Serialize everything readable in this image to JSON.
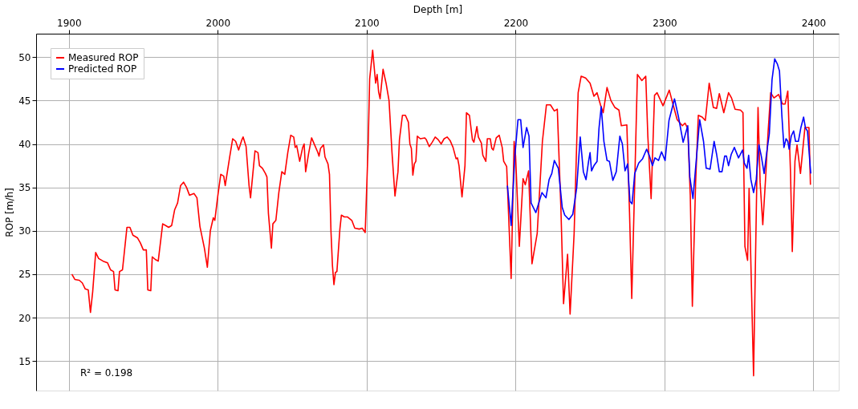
{
  "chart_data": {
    "type": "line",
    "xlabel": "Depth [m]",
    "ylabel": "ROP [m/h]",
    "xlim": [
      1878,
      2417
    ],
    "ylim": [
      11.6,
      52.7
    ],
    "xticks": [
      1900,
      2000,
      2100,
      2200,
      2300,
      2400
    ],
    "yticks": [
      15,
      20,
      25,
      30,
      35,
      40,
      45,
      50
    ],
    "grid": true,
    "legend": "top left",
    "line_style": "solid",
    "marker": "none",
    "annotations": [
      "R² = 0.198"
    ],
    "series": [
      {
        "name": "Measured ROP",
        "color": "#ff0000",
        "x": [
          1902,
          1904,
          1907,
          1909,
          1911,
          1913,
          1914.5,
          1916,
          1918,
          1920,
          1923,
          1926,
          1928,
          1930,
          1931,
          1933,
          1934,
          1936,
          1939,
          1941,
          1943,
          1946,
          1948,
          1950,
          1952,
          1953,
          1955,
          1956,
          1958,
          1960,
          1963,
          1965,
          1967,
          1969,
          1971,
          1973,
          1975,
          1977,
          1979,
          1981,
          1984,
          1986,
          1988,
          1991,
          1993,
          1995,
          1997,
          1998,
          2000,
          2002,
          2004,
          2005,
          2008,
          2010,
          2012,
          2014,
          2016,
          2017,
          2019,
          2021,
          2022,
          2025,
          2027,
          2028,
          2030,
          2032,
          2033,
          2034,
          2036,
          2037,
          2039,
          2041,
          2043,
          2045,
          2047,
          2049,
          2051,
          2052,
          2053,
          2055,
          2057,
          2058,
          2059,
          2061,
          2063,
          2065,
          2067,
          2068,
          2069,
          2071,
          2072,
          2074,
          2075,
          2076,
          2077,
          2078,
          2079,
          2080,
          2082,
          2083,
          2085,
          2087,
          2090,
          2092,
          2095,
          2097,
          2099,
          2101,
          2102,
          2104,
          2106,
          2107,
          2108,
          2109,
          2111,
          2113,
          2115,
          2117,
          2119,
          2121,
          2122,
          2124,
          2126,
          2128,
          2129,
          2130,
          2131,
          2132,
          2133,
          2134,
          2136,
          2139,
          2140,
          2142,
          2144,
          2146,
          2148,
          2150,
          2152,
          2154,
          2156,
          2158,
          2160,
          2161,
          2162,
          2164,
          2166,
          2167,
          2169,
          2171,
          2172,
          2174,
          2175,
          2177,
          2178,
          2180,
          2181,
          2183,
          2184,
          2185,
          2187,
          2189,
          2191,
          2192,
          2194,
          2197,
          2199,
          2200,
          2202.5,
          2205,
          2206.5,
          2208.7,
          2211,
          2214.5,
          2218,
          2220.7,
          2223.4,
          2226,
          2228,
          2230.4,
          2232.2,
          2234.9,
          2236.6,
          2239.3,
          2242,
          2244,
          2247,
          2250,
          2252.6,
          2254.7,
          2257,
          2258.8,
          2261.4,
          2264,
          2266.7,
          2269.4,
          2271,
          2274.7,
          2276.5,
          2278,
          2280,
          2281.8,
          2284.8,
          2287.4,
          2288.8,
          2291,
          2293.3,
          2295,
          2299,
          2303.2,
          2305.8,
          2308.5,
          2312,
          2313.8,
          2315.6,
          2317.3,
          2318.7,
          2320.9,
          2322.7,
          2325.3,
          2327.4,
          2330,
          2332.8,
          2335,
          2336.8,
          2339.8,
          2343,
          2345,
          2347.4,
          2351,
          2352.7,
          2354,
          2355.8,
          2356.8,
          2359.8,
          2362.8,
          2364.2,
          2366,
          2367.8,
          2369.6,
          2371.3,
          2373.5,
          2376.6,
          2379.3,
          2381,
          2382.8,
          2384.6,
          2385.8,
          2387.6,
          2389,
          2391.3,
          2394.3,
          2397,
          2398
        ],
        "values": [
          25.0,
          24.4,
          24.3,
          24.0,
          23.3,
          23.2,
          20.6,
          23.0,
          27.5,
          26.8,
          26.5,
          26.3,
          25.5,
          25.3,
          23.2,
          23.1,
          25.3,
          25.5,
          30.4,
          30.4,
          29.5,
          29.2,
          28.6,
          27.8,
          27.8,
          23.2,
          23.1,
          27.0,
          26.7,
          26.5,
          30.8,
          30.6,
          30.4,
          30.6,
          32.4,
          33.2,
          35.2,
          35.6,
          35.0,
          34.1,
          34.3,
          33.8,
          30.5,
          28.0,
          25.8,
          30.0,
          31.5,
          31.2,
          34.0,
          36.5,
          36.3,
          35.2,
          38.5,
          40.6,
          40.3,
          39.3,
          40.4,
          40.8,
          39.7,
          35.2,
          33.8,
          39.2,
          39.0,
          37.5,
          37.2,
          36.6,
          36.2,
          32.0,
          28.0,
          30.8,
          31.2,
          34.4,
          36.8,
          36.5,
          39.0,
          41.0,
          40.8,
          39.6,
          39.8,
          38.0,
          39.6,
          40.0,
          36.8,
          38.9,
          40.7,
          39.9,
          39.1,
          38.6,
          39.5,
          39.9,
          38.5,
          37.7,
          36.5,
          30.0,
          26.0,
          23.8,
          25.2,
          25.3,
          30.2,
          31.8,
          31.6,
          31.6,
          31.2,
          30.3,
          30.2,
          30.3,
          29.8,
          40.0,
          47.5,
          50.8,
          47.0,
          48.0,
          46.0,
          45.2,
          48.6,
          47.0,
          45.0,
          39.0,
          34.0,
          36.8,
          40.5,
          43.3,
          43.3,
          42.5,
          40.0,
          39.5,
          36.4,
          37.7,
          38.0,
          40.9,
          40.6,
          40.7,
          40.5,
          39.7,
          40.2,
          40.8,
          40.5,
          40.0,
          40.6,
          40.8,
          40.4,
          39.6,
          38.3,
          38.4,
          37.5,
          33.9,
          37.5,
          43.6,
          43.3,
          40.5,
          40.2,
          42.0,
          40.8,
          40.1,
          38.7,
          38.0,
          40.6,
          40.6,
          39.5,
          39.3,
          40.7,
          41.0,
          39.6,
          38.0,
          37.4,
          24.5,
          40.3,
          38.6,
          28.2,
          36.0,
          35.3,
          36.9,
          26.2,
          29.7,
          40.3,
          44.5,
          44.5,
          43.8,
          44.0,
          32.7,
          21.6,
          27.3,
          20.4,
          29.7,
          45.9,
          47.8,
          47.6,
          47.0,
          45.5,
          45.9,
          44.5,
          43.6,
          46.5,
          45.0,
          44.2,
          43.9,
          42.1,
          42.2,
          32.1,
          22.2,
          35.6,
          48.0,
          47.3,
          47.8,
          40.9,
          33.7,
          45.6,
          45.9,
          44.4,
          46.2,
          44.5,
          42.8,
          42.1,
          42.4,
          41.8,
          34.1,
          21.3,
          35.6,
          43.3,
          43.1,
          42.7,
          47.0,
          44.2,
          44.1,
          45.8,
          43.6,
          45.9,
          45.3,
          44.0,
          43.9,
          43.6,
          28.2,
          26.6,
          34.9,
          13.3,
          44.2,
          35.6,
          30.7,
          35.8,
          41.5,
          45.9,
          45.3,
          45.7,
          44.6,
          44.6,
          46.1,
          36.8,
          27.6,
          38.0,
          39.9,
          36.6,
          41.9,
          41.9,
          35.3
        ]
      },
      {
        "name": "Predicted ROP",
        "color": "#0000ff",
        "x": [
          2194.5,
          2197,
          2199.5,
          2201.6,
          2203.4,
          2205,
          2207.4,
          2209,
          2210.4,
          2213.6,
          2217.7,
          2220.4,
          2222.5,
          2224.3,
          2226,
          2228.7,
          2231.3,
          2233,
          2235.8,
          2238.4,
          2241,
          2243.4,
          2245.5,
          2247.3,
          2249,
          2250,
          2251,
          2252.6,
          2254.7,
          2256,
          2257.5,
          2259.3,
          2261.4,
          2263,
          2265.3,
          2267.6,
          2270,
          2271.7,
          2273.5,
          2275.2,
          2276.8,
          2278.2,
          2280,
          2282.7,
          2285.3,
          2288,
          2289.7,
          2291.9,
          2293.6,
          2296,
          2298,
          2300.4,
          2303,
          2306.7,
          2309.4,
          2312.5,
          2315.6,
          2317,
          2319.1,
          2321.8,
          2323.6,
          2326.2,
          2328,
          2330.6,
          2333.3,
          2335,
          2336.8,
          2338.6,
          2340.4,
          2341.6,
          2343,
          2344.8,
          2346.9,
          2349.7,
          2352.4,
          2353.6,
          2355.4,
          2356.5,
          2358,
          2359.8,
          2361.6,
          2363.4,
          2365,
          2366.9,
          2368.7,
          2370.4,
          2372.2,
          2374,
          2375.8,
          2377.2,
          2378.8,
          2380.2,
          2381.6,
          2382.8,
          2383.7,
          2385.1,
          2386.7,
          2388,
          2389.9,
          2391.6,
          2393.4,
          2394.7,
          2396,
          2398.2
        ],
        "values": [
          35.2,
          30.6,
          38.6,
          42.8,
          42.8,
          39.6,
          41.9,
          40.9,
          33.2,
          32.1,
          34.4,
          33.8,
          35.9,
          36.6,
          38.1,
          37.2,
          32.7,
          31.8,
          31.3,
          31.9,
          34.9,
          40.8,
          36.8,
          35.9,
          38.0,
          39.0,
          36.9,
          37.5,
          38.0,
          41.8,
          44.3,
          40.3,
          38.1,
          38.0,
          35.8,
          36.8,
          40.9,
          40.0,
          36.9,
          37.7,
          33.4,
          33.1,
          36.6,
          37.8,
          38.3,
          39.4,
          38.7,
          37.5,
          38.4,
          38.1,
          39.1,
          38.1,
          42.7,
          45.2,
          43.1,
          40.2,
          42.1,
          36.2,
          33.7,
          39.1,
          42.8,
          40.3,
          37.2,
          37.1,
          40.3,
          38.8,
          36.8,
          36.8,
          38.6,
          38.6,
          37.5,
          38.8,
          39.6,
          38.4,
          39.3,
          37.8,
          37.2,
          38.7,
          35.9,
          34.4,
          35.9,
          39.9,
          38.6,
          36.6,
          39.1,
          41.2,
          47.4,
          49.8,
          49.2,
          48.4,
          43.3,
          39.6,
          40.6,
          40.3,
          39.4,
          40.9,
          41.5,
          40.3,
          40.3,
          41.9,
          43.1,
          41.8,
          41.5,
          36.6
        ]
      }
    ]
  }
}
